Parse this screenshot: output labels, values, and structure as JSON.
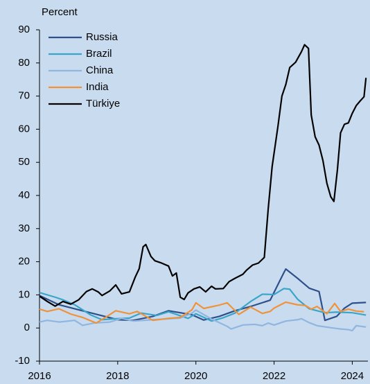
{
  "chart_data": {
    "type": "line",
    "y_axis_label": "Percent",
    "xlim": [
      2016,
      2024.4
    ],
    "xticks": [
      2016,
      2018,
      2020,
      2022,
      2024
    ],
    "ylim": [
      -10,
      90
    ],
    "yticks": [
      -10,
      0,
      10,
      20,
      30,
      40,
      50,
      60,
      70,
      80,
      90
    ],
    "legend": "upper left",
    "series": [
      {
        "name": "Russia",
        "color": "#2e4f8a",
        "x": [
          2016,
          2016.5,
          2017,
          2017.5,
          2018,
          2018.4,
          2018.9,
          2019.3,
          2019.9,
          2020.2,
          2020.6,
          2021,
          2021.4,
          2021.9,
          2022.25,
          2022.3,
          2022.6,
          2022.9,
          2023.15,
          2023.3,
          2023.6,
          2023.8,
          2024,
          2024.35
        ],
        "values": [
          9.8,
          7,
          5.5,
          4,
          2.5,
          2.3,
          3.5,
          5.2,
          4,
          2.4,
          3.5,
          5.2,
          6.5,
          8.4,
          16.7,
          17.8,
          15,
          12,
          11,
          2.3,
          3.5,
          6,
          7.5,
          7.7
        ]
      },
      {
        "name": "Brazil",
        "color": "#3aa5c8",
        "x": [
          2016,
          2016.4,
          2016.6,
          2016.9,
          2017.3,
          2017.6,
          2017.95,
          2018.3,
          2018.6,
          2019,
          2019.3,
          2019.8,
          2020,
          2020.4,
          2020.7,
          2021,
          2021.4,
          2021.7,
          2022,
          2022.25,
          2022.4,
          2022.6,
          2022.9,
          2023.3,
          2023.6,
          2024,
          2024.35
        ],
        "values": [
          10.7,
          9.3,
          8.5,
          7,
          4,
          2.5,
          2.8,
          3,
          4.5,
          3.8,
          4.9,
          2.9,
          4.3,
          2.1,
          3.1,
          4.5,
          8,
          10.2,
          10.1,
          11.9,
          11.7,
          8.7,
          5.8,
          4.6,
          4.8,
          4.6,
          3.9
        ]
      },
      {
        "name": "China",
        "color": "#8fb5e0",
        "x": [
          2016,
          2016.2,
          2016.5,
          2016.9,
          2017.1,
          2017.4,
          2017.8,
          2018.1,
          2018.4,
          2018.9,
          2019.2,
          2019.6,
          2019.9,
          2020,
          2020.4,
          2020.8,
          2020.9,
          2021.2,
          2021.5,
          2021.7,
          2021.85,
          2022,
          2022.3,
          2022.6,
          2022.7,
          2022.9,
          2023.1,
          2023.5,
          2023.7,
          2023.9,
          2024,
          2024.1,
          2024.35
        ],
        "values": [
          1.8,
          2.3,
          1.8,
          2.3,
          0.8,
          1.5,
          1.8,
          2.9,
          2.1,
          2.5,
          2.7,
          3,
          4.5,
          5.4,
          2.7,
          0.5,
          -0.3,
          0.9,
          1.1,
          0.7,
          1.5,
          0.9,
          2.1,
          2.5,
          2.8,
          1.6,
          0.7,
          0,
          -0.3,
          -0.5,
          -0.8,
          0.7,
          0.3
        ]
      },
      {
        "name": "India",
        "color": "#f0923a",
        "x": [
          2016,
          2016.2,
          2016.5,
          2016.8,
          2017.1,
          2017.45,
          2017.7,
          2017.95,
          2018.3,
          2018.5,
          2018.9,
          2019.3,
          2019.6,
          2019.9,
          2020,
          2020.2,
          2020.6,
          2020.8,
          2021.1,
          2021.4,
          2021.7,
          2021.9,
          2022,
          2022.3,
          2022.6,
          2022.8,
          2022.95,
          2023.1,
          2023.35,
          2023.55,
          2023.7,
          2023.9,
          2024.1,
          2024.3
        ],
        "values": [
          5.7,
          5,
          5.8,
          4.2,
          3.2,
          1.5,
          3.3,
          5.2,
          4.3,
          5,
          2.3,
          2.9,
          3.2,
          5.5,
          7.6,
          5.9,
          6.9,
          7.6,
          4.1,
          6.3,
          4.4,
          5,
          6,
          7.8,
          7,
          6.8,
          5.7,
          6.5,
          4.3,
          7.4,
          5,
          5.7,
          5.1,
          4.9
        ]
      },
      {
        "name": "Türkiye",
        "color": "#000000",
        "x": [
          2016,
          2016.2,
          2016.4,
          2016.6,
          2016.8,
          2017,
          2017.2,
          2017.35,
          2017.5,
          2017.6,
          2017.8,
          2017.95,
          2018.1,
          2018.3,
          2018.45,
          2018.55,
          2018.65,
          2018.72,
          2018.85,
          2018.95,
          2019.1,
          2019.3,
          2019.4,
          2019.5,
          2019.6,
          2019.7,
          2019.8,
          2019.95,
          2020.1,
          2020.25,
          2020.4,
          2020.5,
          2020.7,
          2020.85,
          2021,
          2021.2,
          2021.3,
          2021.45,
          2021.6,
          2021.75,
          2021.85,
          2021.95,
          2022.1,
          2022.2,
          2022.3,
          2022.4,
          2022.55,
          2022.7,
          2022.78,
          2022.88,
          2022.95,
          2023.05,
          2023.15,
          2023.25,
          2023.35,
          2023.45,
          2023.53,
          2023.62,
          2023.7,
          2023.8,
          2023.9,
          2024,
          2024.1,
          2024.2,
          2024.3,
          2024.35
        ],
        "values": [
          9.6,
          8,
          6.6,
          8,
          7.2,
          8.5,
          11,
          11.8,
          10.9,
          9.8,
          11.2,
          13,
          10.3,
          10.9,
          15.4,
          17.9,
          24.5,
          25.2,
          21.6,
          20.3,
          19.7,
          18.7,
          15.7,
          16.6,
          9.3,
          8.6,
          10.6,
          11.8,
          12.4,
          10.9,
          12.6,
          11.8,
          11.9,
          14,
          15,
          16.2,
          17.5,
          19,
          19.6,
          21.3,
          36,
          48.7,
          61,
          70,
          73.5,
          78.6,
          80.2,
          83.4,
          85.5,
          84.4,
          64.3,
          57.7,
          55.2,
          50.5,
          43.7,
          39.6,
          38.2,
          47.8,
          58.9,
          61.5,
          61.9,
          64.8,
          67.1,
          68.5,
          69.8,
          75.5
        ]
      }
    ]
  }
}
